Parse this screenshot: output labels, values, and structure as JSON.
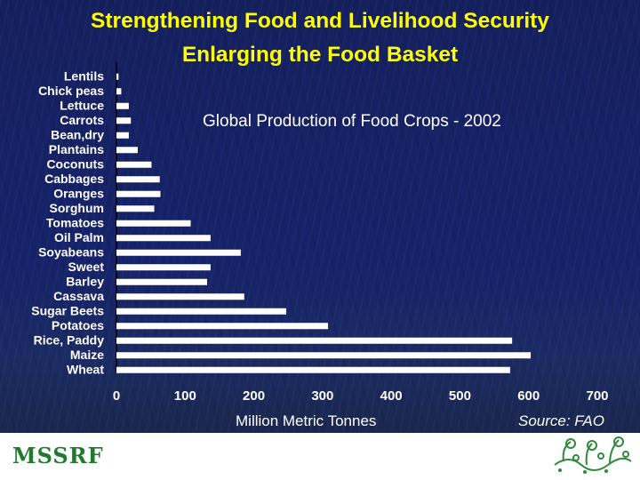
{
  "slide": {
    "title_line1": "Strengthening Food and Livelihood Security",
    "title_line2": "Enlarging the Food Basket",
    "source": "Source: FAO",
    "org_logo_text": "MSSRF"
  },
  "colors": {
    "background": "#16236a",
    "title": "#ffff00",
    "bar": "#ffffff",
    "text": "#ffffff",
    "logo": "#1f7a2e"
  },
  "chart_data": {
    "type": "bar",
    "orientation": "horizontal",
    "title": "Global Production of Food Crops - 2002",
    "xlabel": "Million Metric Tonnes",
    "ylabel": "",
    "xlim": [
      0,
      700
    ],
    "xticks": [
      "0",
      "100",
      "200",
      "300",
      "400",
      "500",
      "600",
      "700"
    ],
    "grid": false,
    "categories": [
      "Lentils",
      "Chick peas",
      "Lettuce",
      "Carrots",
      "Bean,dry",
      "Plantains",
      "Coconuts",
      "Cabbages",
      "Oranges",
      "Sorghum",
      "Tomatoes",
      "Oil Palm",
      "Soyabeans",
      "Sweet",
      "Barley",
      "Cassava",
      "Sugar Beets",
      "Potatoes",
      "Rice, Paddy",
      "Maize",
      "Wheat"
    ],
    "values": [
      3,
      7,
      18,
      21,
      18,
      31,
      51,
      63,
      64,
      55,
      108,
      137,
      181,
      137,
      132,
      186,
      247,
      308,
      576,
      603,
      573
    ]
  }
}
